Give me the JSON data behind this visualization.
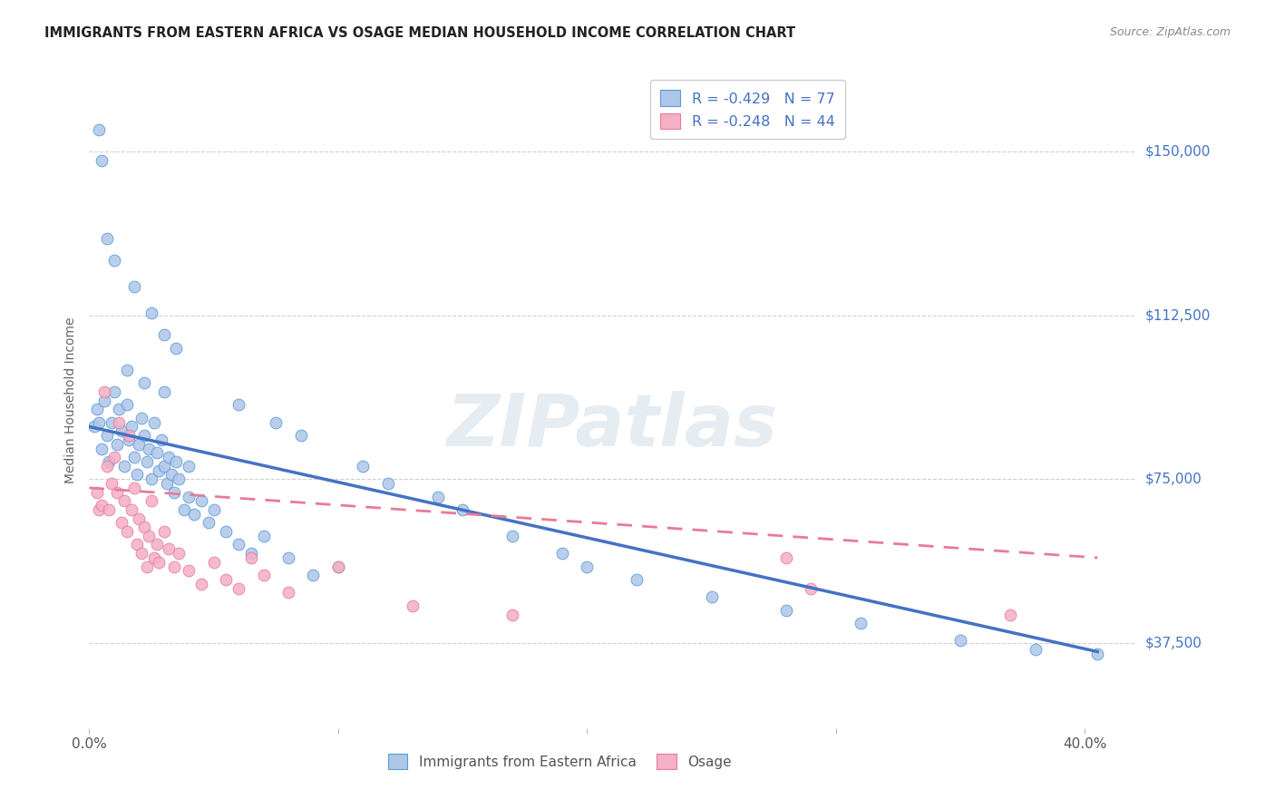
{
  "title": "IMMIGRANTS FROM EASTERN AFRICA VS OSAGE MEDIAN HOUSEHOLD INCOME CORRELATION CHART",
  "source": "Source: ZipAtlas.com",
  "ylabel": "Median Household Income",
  "watermark": "ZIPatlas",
  "xlim": [
    0.0,
    0.42
  ],
  "ylim": [
    18000,
    168000
  ],
  "yticks": [
    37500,
    75000,
    112500,
    150000
  ],
  "ytick_labels": [
    "$37,500",
    "$75,000",
    "$112,500",
    "$150,000"
  ],
  "xticks": [
    0.0,
    0.1,
    0.2,
    0.3,
    0.4
  ],
  "xtick_labels": [
    "0.0%",
    "",
    "",
    "",
    "40.0%"
  ],
  "blue_trend_x": [
    0.0,
    0.405
  ],
  "blue_trend_y": [
    87000,
    35500
  ],
  "pink_trend_x": [
    0.0,
    0.405
  ],
  "pink_trend_y": [
    73000,
    57000
  ],
  "blue_scatter_x": [
    0.002,
    0.003,
    0.004,
    0.005,
    0.006,
    0.007,
    0.008,
    0.009,
    0.01,
    0.011,
    0.012,
    0.013,
    0.014,
    0.015,
    0.016,
    0.017,
    0.018,
    0.019,
    0.02,
    0.021,
    0.022,
    0.023,
    0.024,
    0.025,
    0.026,
    0.027,
    0.028,
    0.029,
    0.03,
    0.031,
    0.032,
    0.033,
    0.034,
    0.035,
    0.036,
    0.038,
    0.04,
    0.042,
    0.045,
    0.048,
    0.05,
    0.055,
    0.06,
    0.065,
    0.07,
    0.08,
    0.09,
    0.1,
    0.004,
    0.005,
    0.007,
    0.01,
    0.018,
    0.025,
    0.03,
    0.035,
    0.04,
    0.06,
    0.075,
    0.085,
    0.11,
    0.12,
    0.14,
    0.15,
    0.17,
    0.19,
    0.2,
    0.22,
    0.25,
    0.28,
    0.31,
    0.35,
    0.38,
    0.405,
    0.015,
    0.022,
    0.03
  ],
  "blue_scatter_y": [
    87000,
    91000,
    88000,
    82000,
    93000,
    85000,
    79000,
    88000,
    95000,
    83000,
    91000,
    86000,
    78000,
    92000,
    84000,
    87000,
    80000,
    76000,
    83000,
    89000,
    85000,
    79000,
    82000,
    75000,
    88000,
    81000,
    77000,
    84000,
    78000,
    74000,
    80000,
    76000,
    72000,
    79000,
    75000,
    68000,
    71000,
    67000,
    70000,
    65000,
    68000,
    63000,
    60000,
    58000,
    62000,
    57000,
    53000,
    55000,
    155000,
    148000,
    130000,
    125000,
    119000,
    113000,
    108000,
    105000,
    78000,
    92000,
    88000,
    85000,
    78000,
    74000,
    71000,
    68000,
    62000,
    58000,
    55000,
    52000,
    48000,
    45000,
    42000,
    38000,
    36000,
    35000,
    100000,
    97000,
    95000
  ],
  "pink_scatter_x": [
    0.003,
    0.004,
    0.005,
    0.006,
    0.007,
    0.008,
    0.009,
    0.01,
    0.011,
    0.012,
    0.013,
    0.014,
    0.015,
    0.016,
    0.017,
    0.018,
    0.019,
    0.02,
    0.021,
    0.022,
    0.023,
    0.024,
    0.025,
    0.026,
    0.027,
    0.028,
    0.03,
    0.032,
    0.034,
    0.036,
    0.04,
    0.045,
    0.05,
    0.055,
    0.06,
    0.065,
    0.07,
    0.08,
    0.1,
    0.13,
    0.17,
    0.28,
    0.29,
    0.37
  ],
  "pink_scatter_y": [
    72000,
    68000,
    69000,
    95000,
    78000,
    68000,
    74000,
    80000,
    72000,
    88000,
    65000,
    70000,
    63000,
    85000,
    68000,
    73000,
    60000,
    66000,
    58000,
    64000,
    55000,
    62000,
    70000,
    57000,
    60000,
    56000,
    63000,
    59000,
    55000,
    58000,
    54000,
    51000,
    56000,
    52000,
    50000,
    57000,
    53000,
    49000,
    55000,
    46000,
    44000,
    57000,
    50000,
    44000
  ],
  "blue_line_color": "#4472c4",
  "pink_line_color": "#e87a9a",
  "scatter_blue_face": "#aec6e8",
  "scatter_blue_edge": "#5b9bd5",
  "scatter_pink_face": "#f4b0c4",
  "scatter_pink_edge": "#e87a9a",
  "grid_color": "#bbbbbb",
  "title_color": "#222222",
  "right_tick_color": "#4472c4",
  "ylabel_color": "#666666",
  "xtick_color": "#555555",
  "legend_top_entries": [
    {
      "label": "R = -0.429   N = 77",
      "face": "#aec6e8",
      "edge": "#5b9bd5"
    },
    {
      "label": "R = -0.248   N = 44",
      "face": "#f4b0c4",
      "edge": "#e87a9a"
    }
  ],
  "legend_bot_entries": [
    {
      "label": "Immigrants from Eastern Africa",
      "face": "#aec6e8",
      "edge": "#5b9bd5"
    },
    {
      "label": "Osage",
      "face": "#f4b0c4",
      "edge": "#e87a9a"
    }
  ]
}
